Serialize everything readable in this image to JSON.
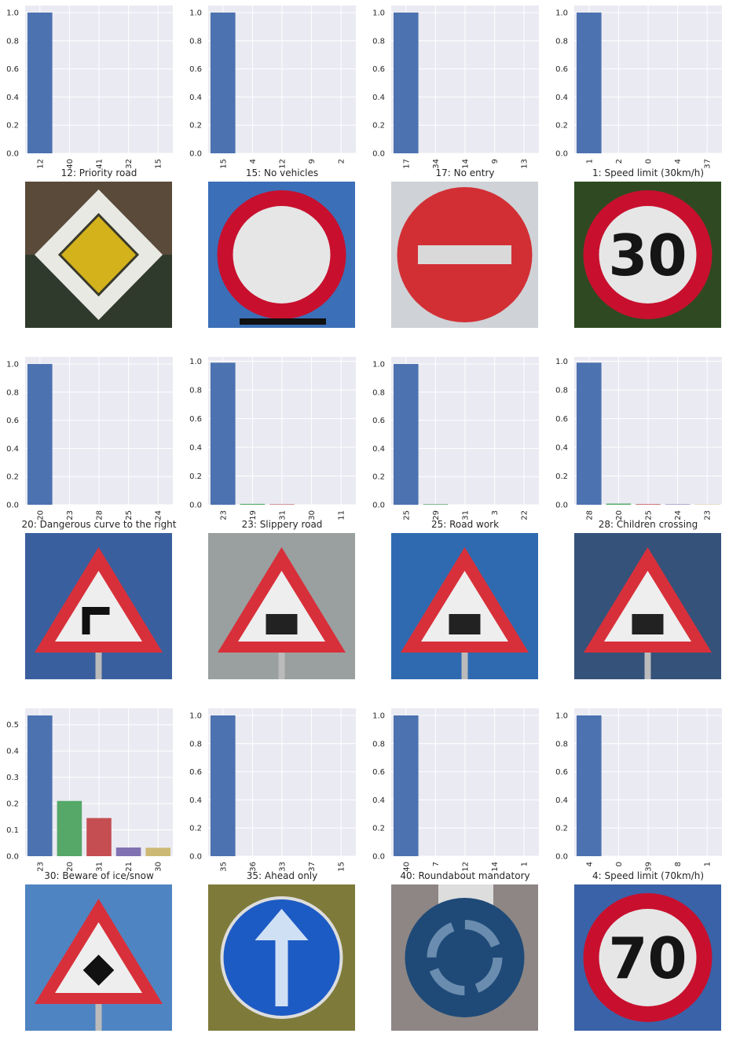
{
  "colors": {
    "plot_bg": "#EAEAF2",
    "grid": "#FFFFFF",
    "bar_palette": [
      "#4C72B0",
      "#55A868",
      "#C44E52",
      "#8172B2",
      "#CCB974"
    ]
  },
  "chart_data": [
    {
      "type": "bar",
      "categories": [
        "12",
        "40",
        "41",
        "32",
        "15"
      ],
      "values": [
        1.0,
        0,
        0,
        0,
        0
      ],
      "ylim": [
        0,
        1.05
      ],
      "yticks": [
        "0.0",
        "0.2",
        "0.4",
        "0.6",
        "0.8",
        "1.0"
      ],
      "caption": "12: Priority road",
      "sign_icon": "priority-road-sign"
    },
    {
      "type": "bar",
      "categories": [
        "15",
        "4",
        "12",
        "9",
        "2"
      ],
      "values": [
        1.0,
        0,
        0,
        0,
        0
      ],
      "ylim": [
        0,
        1.05
      ],
      "yticks": [
        "0.0",
        "0.2",
        "0.4",
        "0.6",
        "0.8",
        "1.0"
      ],
      "caption": "15: No vehicles",
      "sign_icon": "no-vehicles-sign"
    },
    {
      "type": "bar",
      "categories": [
        "17",
        "34",
        "14",
        "9",
        "13"
      ],
      "values": [
        1.0,
        0,
        0,
        0,
        0
      ],
      "ylim": [
        0,
        1.05
      ],
      "yticks": [
        "0.0",
        "0.2",
        "0.4",
        "0.6",
        "0.8",
        "1.0"
      ],
      "caption": "17: No entry",
      "sign_icon": "no-entry-sign"
    },
    {
      "type": "bar",
      "categories": [
        "1",
        "2",
        "0",
        "4",
        "37"
      ],
      "values": [
        1.0,
        0,
        0,
        0,
        0
      ],
      "ylim": [
        0,
        1.05
      ],
      "yticks": [
        "0.0",
        "0.2",
        "0.4",
        "0.6",
        "0.8",
        "1.0"
      ],
      "caption": "1: Speed limit (30km/h)",
      "sign_icon": "speed-limit-30-sign",
      "sign_text": "30"
    },
    {
      "type": "bar",
      "categories": [
        "20",
        "23",
        "28",
        "25",
        "24"
      ],
      "values": [
        1.0,
        0,
        0,
        0,
        0
      ],
      "ylim": [
        0,
        1.05
      ],
      "yticks": [
        "0.0",
        "0.2",
        "0.4",
        "0.6",
        "0.8",
        "1.0"
      ],
      "caption": "20: Dangerous curve to the right",
      "sign_icon": "dangerous-curve-right-sign"
    },
    {
      "type": "bar",
      "categories": [
        "23",
        "19",
        "31",
        "30",
        "11"
      ],
      "values": [
        0.99,
        0.006,
        0.003,
        0,
        0
      ],
      "ylim": [
        0,
        1.03
      ],
      "yticks": [
        "0.0",
        "0.2",
        "0.4",
        "0.6",
        "0.8",
        "1.0"
      ],
      "caption": "23: Slippery road",
      "sign_icon": "slippery-road-sign"
    },
    {
      "type": "bar",
      "categories": [
        "25",
        "29",
        "31",
        "3",
        "22"
      ],
      "values": [
        1.0,
        0.004,
        0,
        0,
        0
      ],
      "ylim": [
        0,
        1.05
      ],
      "yticks": [
        "0.0",
        "0.2",
        "0.4",
        "0.6",
        "0.8",
        "1.0"
      ],
      "caption": "25: Road work",
      "sign_icon": "road-work-sign"
    },
    {
      "type": "bar",
      "categories": [
        "28",
        "20",
        "25",
        "24",
        "23"
      ],
      "values": [
        0.99,
        0.008,
        0.004,
        0.003,
        0.002
      ],
      "ylim": [
        0,
        1.03
      ],
      "yticks": [
        "0.0",
        "0.2",
        "0.4",
        "0.6",
        "0.8",
        "1.0"
      ],
      "caption": "28: Children crossing",
      "sign_icon": "children-crossing-sign"
    },
    {
      "type": "bar",
      "categories": [
        "23",
        "20",
        "31",
        "21",
        "30"
      ],
      "values": [
        0.535,
        0.21,
        0.145,
        0.033,
        0.032
      ],
      "ylim": [
        0,
        0.562
      ],
      "yticks": [
        "0.0",
        "0.1",
        "0.2",
        "0.3",
        "0.4",
        "0.5"
      ],
      "caption": "30: Beware of ice/snow",
      "sign_icon": "beware-ice-snow-sign"
    },
    {
      "type": "bar",
      "categories": [
        "35",
        "36",
        "33",
        "37",
        "15"
      ],
      "values": [
        1.0,
        0,
        0,
        0,
        0
      ],
      "ylim": [
        0,
        1.05
      ],
      "yticks": [
        "0.0",
        "0.2",
        "0.4",
        "0.6",
        "0.8",
        "1.0"
      ],
      "caption": "35: Ahead only",
      "sign_icon": "ahead-only-sign"
    },
    {
      "type": "bar",
      "categories": [
        "40",
        "7",
        "12",
        "14",
        "1"
      ],
      "values": [
        1.0,
        0,
        0,
        0,
        0
      ],
      "ylim": [
        0,
        1.05
      ],
      "yticks": [
        "0.0",
        "0.2",
        "0.4",
        "0.6",
        "0.8",
        "1.0"
      ],
      "caption": "40: Roundabout mandatory",
      "sign_icon": "roundabout-mandatory-sign"
    },
    {
      "type": "bar",
      "categories": [
        "4",
        "0",
        "39",
        "8",
        "1"
      ],
      "values": [
        1.0,
        0,
        0,
        0,
        0
      ],
      "ylim": [
        0,
        1.05
      ],
      "yticks": [
        "0.0",
        "0.2",
        "0.4",
        "0.6",
        "0.8",
        "1.0"
      ],
      "caption": "4: Speed limit (70km/h)",
      "sign_icon": "speed-limit-70-sign",
      "sign_text": "70"
    }
  ]
}
